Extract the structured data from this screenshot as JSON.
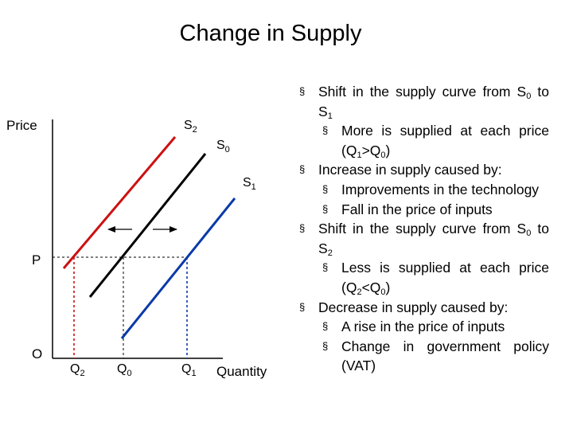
{
  "title": "Change in Supply",
  "diagram": {
    "y_axis_label": "Price",
    "x_axis_label": "Quantity",
    "origin_label": "O",
    "price_label": "P",
    "curves": [
      {
        "name": "S",
        "sub": "2",
        "color": "#cc1111"
      },
      {
        "name": "S",
        "sub": "0",
        "color": "#000000"
      },
      {
        "name": "S",
        "sub": "1",
        "color": "#0a3aa8"
      }
    ],
    "quantities": [
      {
        "name": "Q",
        "sub": "2"
      },
      {
        "name": "Q",
        "sub": "0"
      },
      {
        "name": "Q",
        "sub": "1"
      }
    ]
  },
  "bullets": [
    {
      "level": 1,
      "parts": [
        {
          "t": "Shift in the supply curve from S"
        },
        {
          "sub": "0"
        },
        {
          "t": " to S"
        },
        {
          "sub": "1"
        }
      ]
    },
    {
      "level": 2,
      "parts": [
        {
          "t": "More is supplied at each price (Q"
        },
        {
          "sub": "1"
        },
        {
          "t": ">Q"
        },
        {
          "sub": "0"
        },
        {
          "t": ")"
        }
      ]
    },
    {
      "level": 1,
      "parts": [
        {
          "t": "Increase in supply caused by:"
        }
      ]
    },
    {
      "level": 2,
      "parts": [
        {
          "t": "Improvements in the technology"
        }
      ]
    },
    {
      "level": 2,
      "parts": [
        {
          "t": "Fall in the price of inputs"
        }
      ]
    },
    {
      "level": 1,
      "parts": [
        {
          "t": "Shift in the supply curve from S"
        },
        {
          "sub": "0"
        },
        {
          "t": " to S"
        },
        {
          "sub": "2"
        }
      ]
    },
    {
      "level": 2,
      "parts": [
        {
          "t": "Less is supplied at each price (Q"
        },
        {
          "sub": "2"
        },
        {
          "t": "<Q"
        },
        {
          "sub": "0"
        },
        {
          "t": ")"
        }
      ]
    },
    {
      "level": 1,
      "parts": [
        {
          "t": "Decrease in supply caused by:"
        }
      ]
    },
    {
      "level": 2,
      "parts": [
        {
          "t": "A rise in the price of inputs"
        }
      ]
    },
    {
      "level": 2,
      "parts": [
        {
          "t": "Change in government policy (VAT)"
        }
      ]
    }
  ],
  "bullet_marker": "§"
}
